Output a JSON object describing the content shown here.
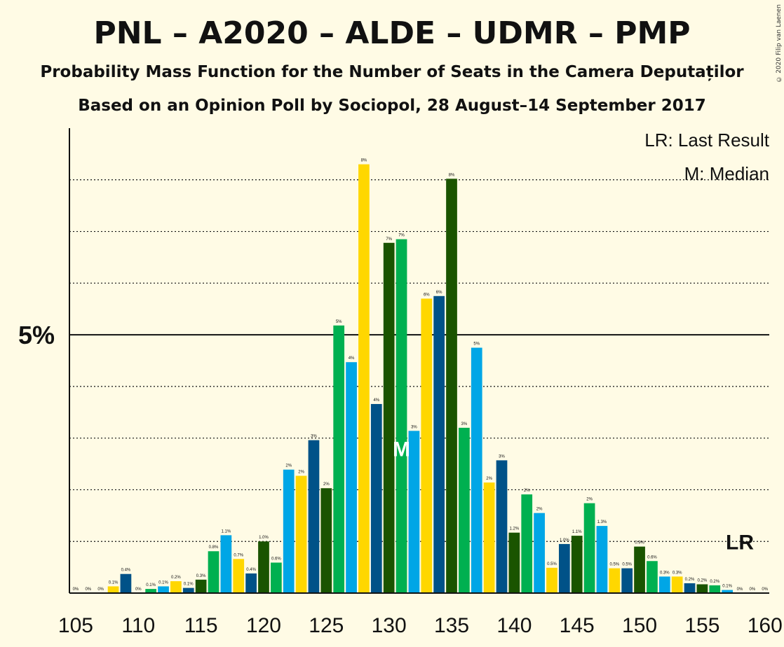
{
  "title": "PNL – A2020 – ALDE – UDMR – PMP",
  "subtitle": "Probability Mass Function for the Number of Seats in the Camera Deputaților",
  "subtitle2": "Based on an Opinion Poll by Sociopol, 28 August–14 September 2017",
  "copyright": "© 2020 Filip van Laenen",
  "legend": {
    "lr": "LR: Last Result",
    "median": "M: Median"
  },
  "markers": {
    "median_label": "M",
    "median_seat": 131,
    "lr_label": "LR",
    "lr_seat": 158
  },
  "colors": [
    "#1A5400",
    "#00B050",
    "#00A6E6",
    "#FFD700",
    "#005288"
  ],
  "chart_data": {
    "type": "bar",
    "xlabel": "",
    "ylabel": "",
    "ylim": [
      0,
      9
    ],
    "y_major_tick": {
      "value": 5,
      "label": "5%"
    },
    "y_dotted_lines": [
      1,
      2,
      3,
      4,
      6,
      7,
      8
    ],
    "x_tick_labels": [
      "105",
      "110",
      "115",
      "120",
      "125",
      "130",
      "135",
      "140",
      "145",
      "150",
      "155",
      "160"
    ],
    "x": [
      105,
      106,
      107,
      108,
      109,
      110,
      111,
      112,
      113,
      114,
      115,
      116,
      117,
      118,
      119,
      120,
      121,
      122,
      123,
      124,
      125,
      126,
      127,
      128,
      129,
      130,
      131,
      132,
      133,
      134,
      135,
      136,
      137,
      138,
      139,
      140,
      141,
      142,
      143,
      144,
      145,
      146,
      147,
      148,
      149,
      150,
      151,
      152,
      153,
      154,
      155,
      156,
      157,
      158,
      159,
      160
    ],
    "values": [
      0,
      0,
      0,
      0.13,
      0.37,
      0,
      0.08,
      0.13,
      0.23,
      0.1,
      0.26,
      0.81,
      1.12,
      0.66,
      0.38,
      1.0,
      0.59,
      2.39,
      2.27,
      2.96,
      2.03,
      5.18,
      4.47,
      8.3,
      3.66,
      6.78,
      6.85,
      3.14,
      5.7,
      5.75,
      8.02,
      3.2,
      4.75,
      2.14,
      2.57,
      1.17,
      1.91,
      1.55,
      0.49,
      0.95,
      1.11,
      1.74,
      1.3,
      0.48,
      0.48,
      0.9,
      0.62,
      0.32,
      0.32,
      0.19,
      0.17,
      0.15,
      0.06,
      0,
      0,
      0
    ],
    "labels": [
      "0%",
      "0%",
      "0%",
      "0.1%",
      "0.4%",
      "0%",
      "0.1%",
      "0.1%",
      "0.2%",
      "0.1%",
      "0.3%",
      "0.8%",
      "1.1%",
      "0.7%",
      "0.4%",
      "1.0%",
      "0.6%",
      "2%",
      "2%",
      "3%",
      "2%",
      "5%",
      "4%",
      "8%",
      "4%",
      "7%",
      "7%",
      "3%",
      "6%",
      "6%",
      "8%",
      "3%",
      "5%",
      "2%",
      "3%",
      "1.2%",
      "2%",
      "2%",
      "0.5%",
      "1.0%",
      "1.1%",
      "2%",
      "1.3%",
      "0.5%",
      "0.5%",
      "0.9%",
      "0.6%",
      "0.3%",
      "0.3%",
      "0.2%",
      "0.2%",
      "0.2%",
      "0.1%",
      "0%",
      "0%",
      "0%"
    ]
  }
}
